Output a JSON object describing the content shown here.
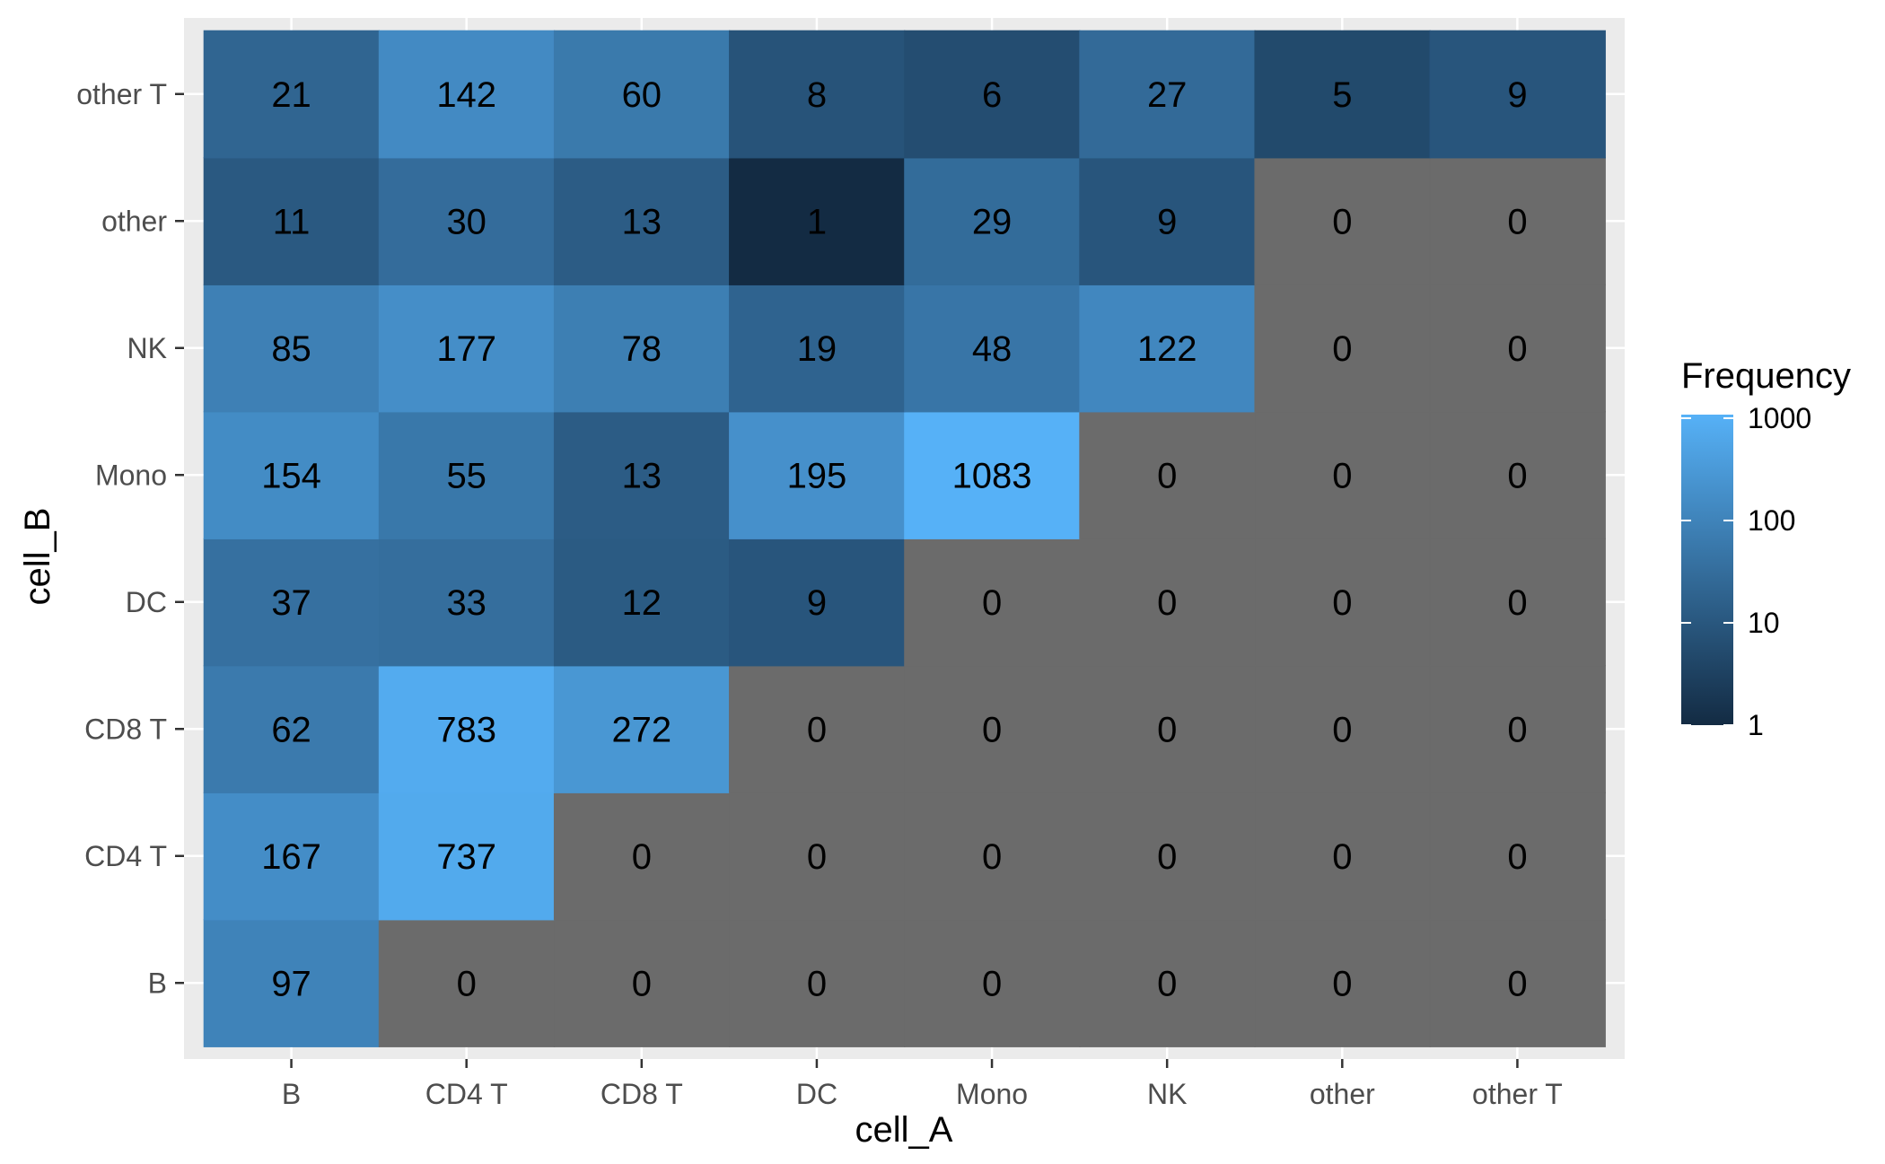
{
  "chart_data": {
    "type": "heatmap",
    "xlabel": "cell_A",
    "ylabel": "cell_B",
    "x_categories": [
      "B",
      "CD4 T",
      "CD8 T",
      "DC",
      "Mono",
      "NK",
      "other",
      "other T"
    ],
    "y_categories": [
      "B",
      "CD4 T",
      "CD8 T",
      "DC",
      "Mono",
      "NK",
      "other",
      "other T"
    ],
    "values": [
      [
        97,
        0,
        0,
        0,
        0,
        0,
        0,
        0
      ],
      [
        167,
        737,
        0,
        0,
        0,
        0,
        0,
        0
      ],
      [
        62,
        783,
        272,
        0,
        0,
        0,
        0,
        0
      ],
      [
        37,
        33,
        12,
        9,
        0,
        0,
        0,
        0
      ],
      [
        154,
        55,
        13,
        195,
        1083,
        0,
        0,
        0
      ],
      [
        85,
        177,
        78,
        19,
        48,
        122,
        0,
        0
      ],
      [
        11,
        30,
        13,
        1,
        29,
        9,
        0,
        0
      ],
      [
        21,
        142,
        60,
        8,
        6,
        27,
        5,
        9
      ]
    ],
    "color_scale": "log10",
    "color_low": "#132B43",
    "color_high": "#56B1F7",
    "zero_color": "#6b6b6b",
    "legend": {
      "title": "Frequency",
      "ticks": [
        1,
        10,
        100,
        1000
      ],
      "tick_labels": [
        "1",
        "10",
        "100",
        "1000"
      ],
      "range": [
        1,
        1083
      ]
    },
    "panel_background": "#ebebeb",
    "grid_color": "#ffffff"
  }
}
